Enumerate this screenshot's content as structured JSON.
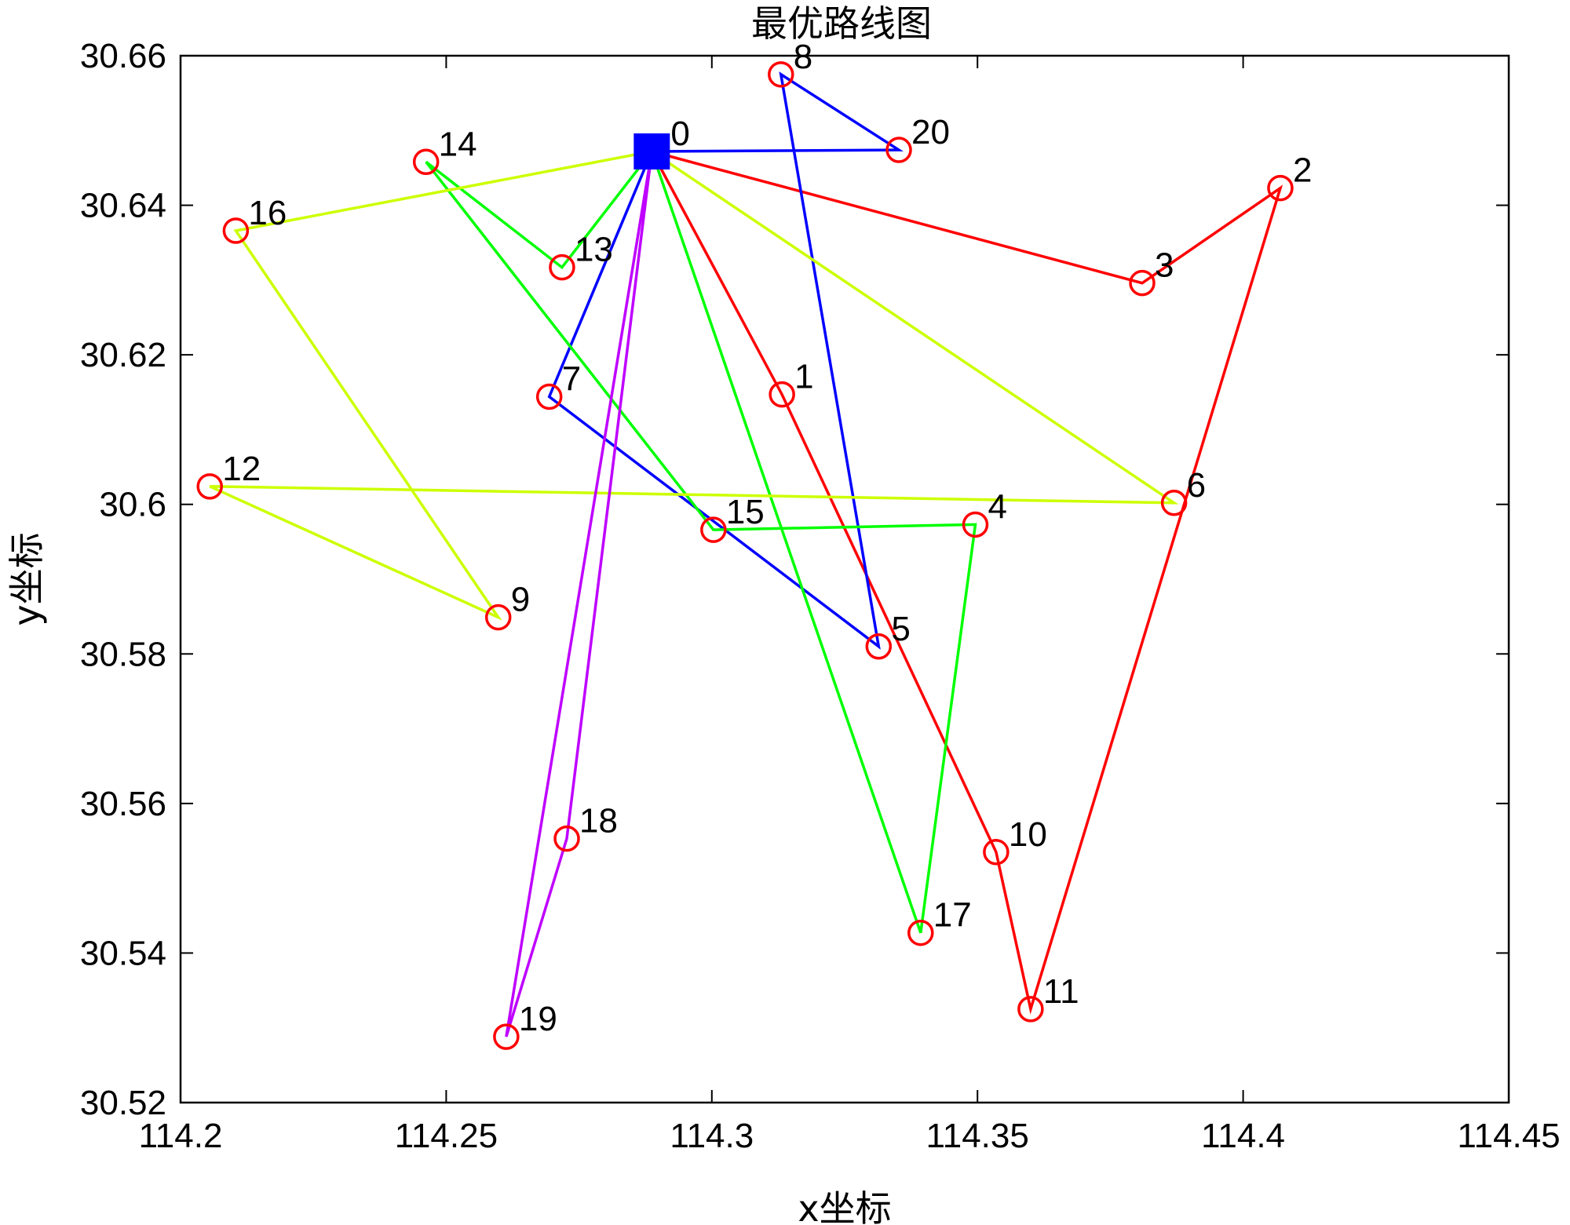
{
  "chart_data": {
    "type": "line",
    "title": "最优路线图",
    "xlabel": "x坐标",
    "ylabel": "y坐标",
    "xlim": [
      114.2,
      114.45
    ],
    "ylim": [
      30.52,
      30.66
    ],
    "xticks": [
      "114.2",
      "114.25",
      "114.3",
      "114.35",
      "114.4",
      "114.45"
    ],
    "xtick_values": [
      114.2,
      114.25,
      114.3,
      114.35,
      114.4,
      114.45
    ],
    "yticks": [
      "30.52",
      "30.54",
      "30.56",
      "30.58",
      "30.6",
      "30.62",
      "30.64",
      "30.66"
    ],
    "ytick_values": [
      30.52,
      30.54,
      30.56,
      30.58,
      30.6,
      30.62,
      30.64,
      30.66
    ],
    "grid": false,
    "depot": {
      "label": "0",
      "x": 114.2887,
      "y": 30.6472,
      "color": "#0000ff",
      "marker": "filled-square"
    },
    "nodes": [
      {
        "label": "1",
        "x": 114.3132,
        "y": 30.6147
      },
      {
        "label": "2",
        "x": 114.407,
        "y": 30.6423
      },
      {
        "label": "3",
        "x": 114.381,
        "y": 30.6296
      },
      {
        "label": "4",
        "x": 114.3496,
        "y": 30.5973
      },
      {
        "label": "5",
        "x": 114.3314,
        "y": 30.581
      },
      {
        "label": "6",
        "x": 114.387,
        "y": 30.6002
      },
      {
        "label": "7",
        "x": 114.2694,
        "y": 30.6144
      },
      {
        "label": "8",
        "x": 114.313,
        "y": 30.6575
      },
      {
        "label": "9",
        "x": 114.2598,
        "y": 30.5849
      },
      {
        "label": "10",
        "x": 114.3535,
        "y": 30.5535
      },
      {
        "label": "11",
        "x": 114.36,
        "y": 30.5325
      },
      {
        "label": "12",
        "x": 114.2055,
        "y": 30.6024
      },
      {
        "label": "13",
        "x": 114.2718,
        "y": 30.6317
      },
      {
        "label": "14",
        "x": 114.2462,
        "y": 30.6458
      },
      {
        "label": "15",
        "x": 114.3003,
        "y": 30.5966
      },
      {
        "label": "16",
        "x": 114.2104,
        "y": 30.6366
      },
      {
        "label": "17",
        "x": 114.3393,
        "y": 30.5427
      },
      {
        "label": "18",
        "x": 114.2727,
        "y": 30.5553
      },
      {
        "label": "19",
        "x": 114.2613,
        "y": 30.5288
      },
      {
        "label": "20",
        "x": 114.3352,
        "y": 30.6474
      }
    ],
    "node_color": "#ff0000",
    "node_marker": "open-circle",
    "routes": [
      {
        "color": "#ff0000",
        "path": [
          "0",
          "3",
          "2",
          "11",
          "10",
          "1",
          "0"
        ]
      },
      {
        "color": "#0000ff",
        "path": [
          "0",
          "20",
          "8",
          "5",
          "7",
          "0"
        ]
      },
      {
        "color": "#00ff00",
        "path": [
          "0",
          "17",
          "4",
          "15",
          "14",
          "13",
          "0"
        ]
      },
      {
        "color": "#ccff00",
        "path": [
          "0",
          "6",
          "12",
          "9",
          "16",
          "0"
        ]
      },
      {
        "color": "#bf00ff",
        "path": [
          "0",
          "19",
          "18",
          "0"
        ]
      }
    ]
  }
}
